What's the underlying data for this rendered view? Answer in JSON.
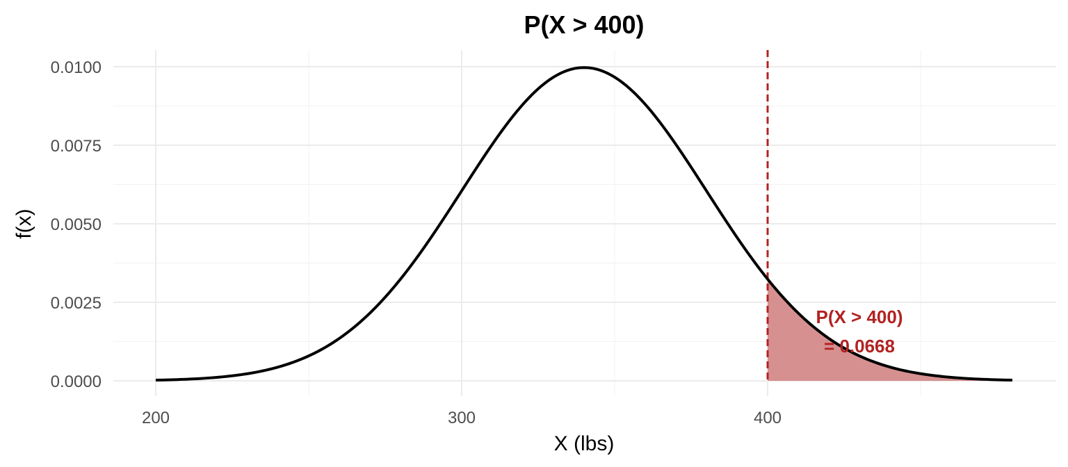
{
  "chart_data": {
    "type": "area",
    "title": "P(X > 400)",
    "xlabel": "X (lbs)",
    "ylabel": "f(x)",
    "distribution": {
      "family": "normal",
      "mean": 340,
      "sd": 40
    },
    "xlim": [
      200,
      480
    ],
    "ylim": [
      0,
      0.01
    ],
    "x_ticks": [
      200,
      300,
      400
    ],
    "x_tick_labels": [
      "200",
      "300",
      "400"
    ],
    "y_ticks": [
      0,
      0.0025,
      0.005,
      0.0075,
      0.01
    ],
    "y_tick_labels": [
      "0.0000",
      "0.0025",
      "0.0050",
      "0.0075",
      "0.0100"
    ],
    "grid": true,
    "series": [
      {
        "x": [
          200,
          220,
          240,
          260,
          280,
          300,
          320,
          340,
          360,
          380,
          400,
          420,
          440,
          460,
          480
        ],
        "y": [
          2.2e-05,
          0.000111,
          0.000438,
          0.001349,
          0.003238,
          0.006049,
          0.008802,
          0.009974,
          0.008802,
          0.006049,
          0.003238,
          0.001349,
          0.000438,
          0.000111,
          2.2e-05
        ]
      }
    ],
    "threshold": 400,
    "shaded_region": {
      "from": 400,
      "to": 480,
      "probability": 0.0668
    },
    "annotation": [
      "P(X > 400)",
      "= 0.0668"
    ],
    "colors": {
      "curve": "#000000",
      "threshold_line": "#b22222",
      "fill": "#d48a8a",
      "annotation": "#b22222",
      "grid": "#ebebeb"
    }
  }
}
